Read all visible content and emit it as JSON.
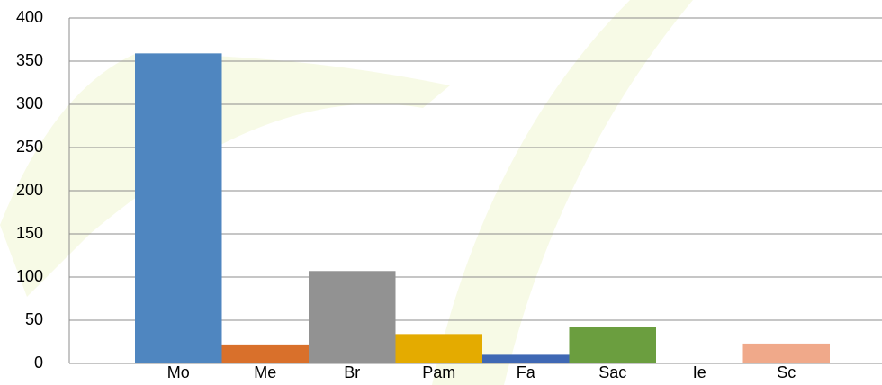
{
  "chart_data": {
    "type": "bar",
    "categories": [
      "Mo",
      "Me",
      "Br",
      "Pam",
      "Fa",
      "Sac",
      "Ie",
      "Sc"
    ],
    "values": [
      359,
      22,
      107,
      34,
      10,
      42,
      1,
      23
    ],
    "colors": [
      "#4f86c0",
      "#d9702b",
      "#929292",
      "#e4ab00",
      "#3f68b4",
      "#6b9e3f",
      "#2f5f9e",
      "#f0a98a"
    ],
    "ylim": [
      0,
      400
    ],
    "yticks": [
      0,
      50,
      100,
      150,
      200,
      250,
      300,
      350,
      400
    ],
    "grid": true
  }
}
